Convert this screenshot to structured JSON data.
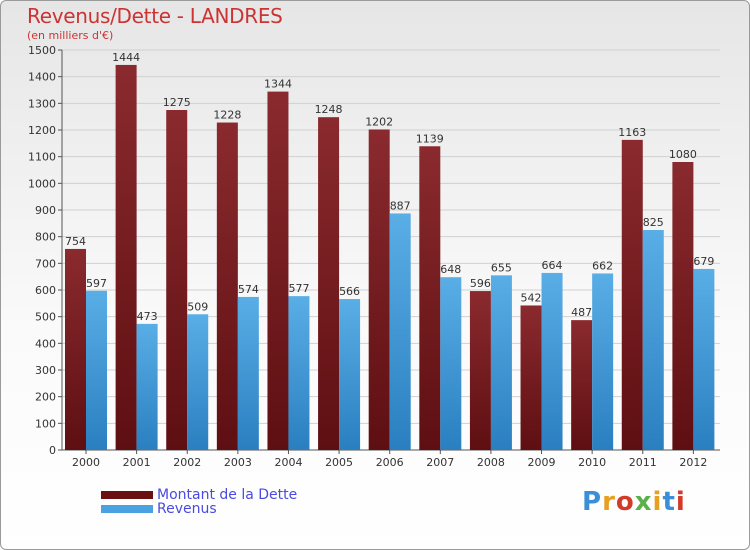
{
  "header": {
    "title": "Revenus/Dette - LANDRES",
    "subtitle": "(en milliers d'€)"
  },
  "legend": {
    "debt_label": "Montant de la Dette",
    "revenue_label": "Revenus"
  },
  "logo": {
    "text": "Proxiti"
  },
  "colors": {
    "debt": "#7a1a1e",
    "revenue": "#4aa3e0",
    "title": "#cc3333",
    "legend_text": "#4a4ae0"
  },
  "chart_data": {
    "type": "bar",
    "categories": [
      "2000",
      "2001",
      "2002",
      "2003",
      "2004",
      "2005",
      "2006",
      "2007",
      "2008",
      "2009",
      "2010",
      "2011",
      "2012"
    ],
    "series": [
      {
        "name": "Montant de la Dette",
        "values": [
          754,
          1444,
          1275,
          1228,
          1344,
          1248,
          1202,
          1139,
          596,
          542,
          487,
          1163,
          1080
        ]
      },
      {
        "name": "Revenus",
        "values": [
          597,
          473,
          509,
          574,
          577,
          566,
          887,
          648,
          655,
          664,
          662,
          825,
          679
        ]
      }
    ],
    "ylim": [
      0,
      1500
    ],
    "yticks": [
      0,
      100,
      200,
      300,
      400,
      500,
      600,
      700,
      800,
      900,
      1000,
      1100,
      1200,
      1300,
      1400,
      1500
    ],
    "grid": true,
    "legend_position": "bottom-left"
  }
}
